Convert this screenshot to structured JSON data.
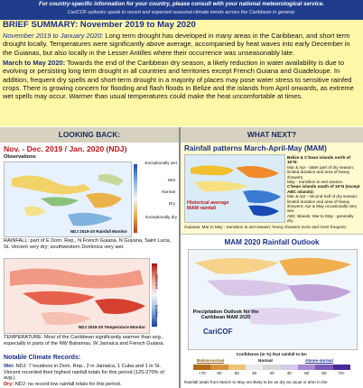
{
  "header": {
    "line1": "For country-specific information for your country, please consult with your national meteorological service.",
    "line2": "CariCOF outlooks speak to recent and expected seasonal climate trends across the Caribbean in general."
  },
  "brief": {
    "title": "BRIEF SUMMARY: November 2019 to May 2020",
    "p1_lead": "November 2019 to January 2020:",
    "p1_text": " Long term drought has developed in many areas in the Caribbean, and short term drought locally. Temperatures were significantly above average, accompanied by heat waves into early December in the Guianas, but also locally in the Lesser Antilles where their occurrence was unseasonably late.",
    "p2_lead": "March to May 2020:",
    "p2_text": " Towards the end of the Caribbean dry season, a likely reduction in water availability is due to evolving or persisting long term drought in all countries and territories except French Guiana and Guadeloupe. In addition, frequent dry spells and short-term drought in a majority of places may pose water stress to sensitive rainfed crops. There is growing concern for flooding and flash floods in Belize and the islands from April onwards, as extreme wet spells may occur. Warmer than usual temperatures could make the heat uncomfortable at times."
  },
  "left": {
    "heading": "LOOKING BACK:",
    "title": "Nov. - Dec. 2019 / Jan. 2020 (NDJ)",
    "subtitle": "Observations",
    "precip_legend": [
      "Exceptionally wet",
      "Wet",
      "Normal",
      "Dry",
      "Exceptionally dry"
    ],
    "precip_map_caption": "NDJ 2019-20 Rainfall Monitor",
    "temp_legend": [
      "Warmer",
      "Cooler"
    ],
    "temp_map_caption": "NDJ 2019-20 Temperature Monitor",
    "rainfall_bullet": "RAINFALL: part of E Dom. Rep., N French Guiana, N Guyana, Saint Lucia, St. Vincent very dry; southwestern Dominica very wet.",
    "temp_bullet": "TEMPERATURE: Most of the Caribbean significantly warmer than avg., especially in parts of the NW Bahamas, W Jamaica and French Guiana.",
    "records_title": "Notable Climate Records:",
    "record1_lead": "Wet:",
    "record1_text": "NDJ: 7 locations in Dom. Rep., 2 in Jamaica, 1 Cuba and 1 in St. Vincent recorded their highest rainfall totals for this period (125-270% of avg.).",
    "record2_lead": "Dry:",
    "record2_text": "NDJ: no record low rainfall totals for this period."
  },
  "right": {
    "heading": "WHAT NEXT?",
    "mam_title": "Rainfall patterns March-April-May (MAM)",
    "mam_map_label": "Historical average MAM rainfall",
    "mam_notes": [
      "Belize & C'bean islands north of 16°N:",
      "Mar & Apr - latter part of dry season; limited duration and area of heavy showers.",
      "May - transition to wet season.",
      "C'bean islands south of 16°N (except ABC islands):",
      "Mar & Apr - second half of dry season; limited duration and area of heavy showers; Apr & May occasionally very wet.",
      "ABC Islands: Mar to May - generally dry."
    ],
    "mam_footnote": "Guianas: Mar to May - transition to wet season; heavy showers more and more frequent.",
    "outlook_title": "MAM 2020 Rainfall Outlook",
    "outlook_caption": "Precipitation Outlook for the Caribbean MAM 2020",
    "outlook_logo": "CariCOF",
    "confidence_title": "Confidence (in %) that rainfall to be:",
    "conf_below": "Below-normal",
    "conf_normal": "Normal",
    "conf_above": "Above-normal",
    "conf_ticks": [
      "+70",
      "60",
      "50",
      "40",
      "40",
      "40",
      "50",
      "60",
      "70+"
    ],
    "bottom_note": "Rainfall totals from March to May are likely to be as dry as usual or drier in the"
  },
  "colors": {
    "banner": "#1f3d8a",
    "summary_bg": "#fff7a8",
    "accent_red": "#c0141a",
    "accent_blue": "#1a2f8a"
  }
}
